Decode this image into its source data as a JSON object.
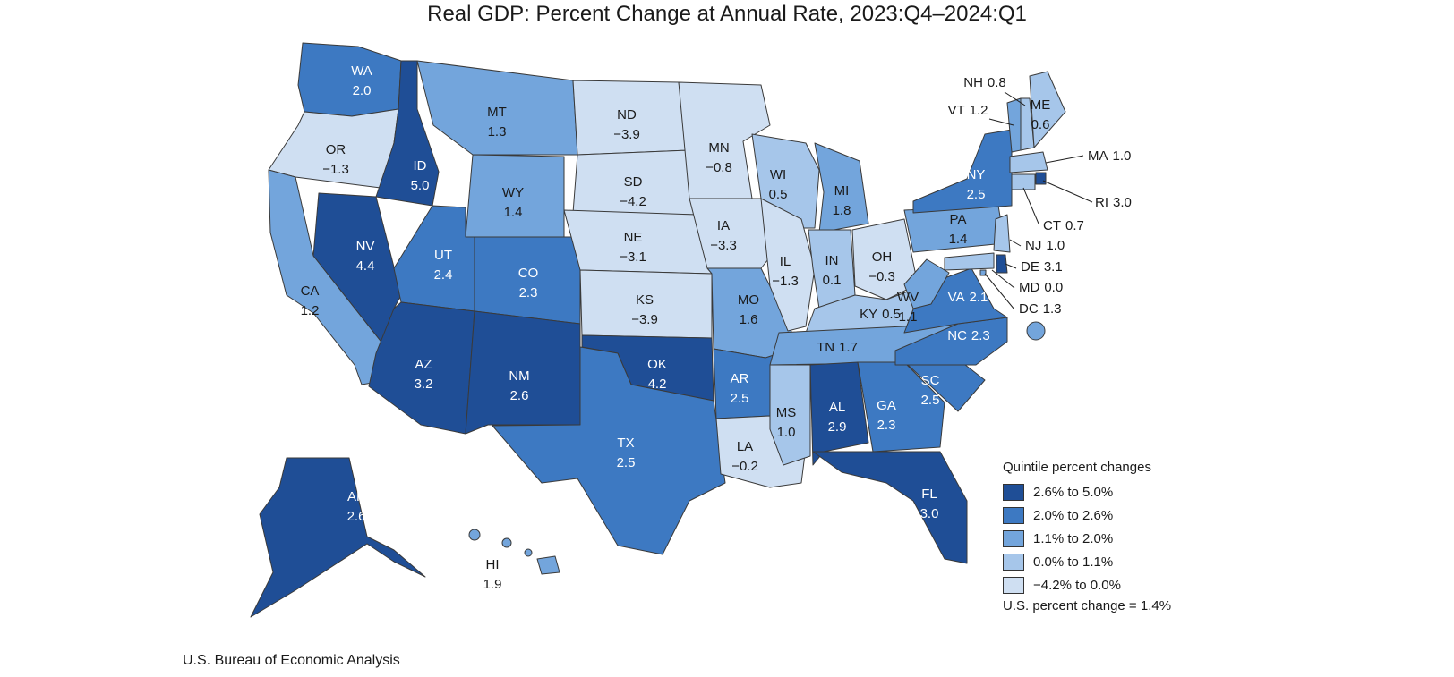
{
  "title": "Real GDP: Percent Change at Annual Rate, 2023:Q4–2024:Q1",
  "source": "U.S. Bureau of Economic Analysis",
  "legend": {
    "title": "Quintile percent changes",
    "items": [
      {
        "label": "2.6% to 5.0%",
        "color": "#1f4e96"
      },
      {
        "label": "2.0% to 2.6%",
        "color": "#3d79c2"
      },
      {
        "label": "1.1% to 2.0%",
        "color": "#73a5dc"
      },
      {
        "label": "0.0% to 1.1%",
        "color": "#a6c6ea"
      },
      {
        "label": "−4.2% to 0.0%",
        "color": "#cfdff2"
      }
    ],
    "us_change": "U.S. percent change = 1.4%"
  },
  "states": [
    {
      "abbr": "WA",
      "value": "2.0",
      "quintile": 1
    },
    {
      "abbr": "OR",
      "value": "−1.3",
      "quintile": 4
    },
    {
      "abbr": "CA",
      "value": "1.2",
      "quintile": 2
    },
    {
      "abbr": "ID",
      "value": "5.0",
      "quintile": 0
    },
    {
      "abbr": "NV",
      "value": "4.4",
      "quintile": 0
    },
    {
      "abbr": "MT",
      "value": "1.3",
      "quintile": 2
    },
    {
      "abbr": "WY",
      "value": "1.4",
      "quintile": 2
    },
    {
      "abbr": "UT",
      "value": "2.4",
      "quintile": 1
    },
    {
      "abbr": "CO",
      "value": "2.3",
      "quintile": 1
    },
    {
      "abbr": "AZ",
      "value": "3.2",
      "quintile": 0
    },
    {
      "abbr": "NM",
      "value": "2.6",
      "quintile": 0
    },
    {
      "abbr": "ND",
      "value": "−3.9",
      "quintile": 4
    },
    {
      "abbr": "SD",
      "value": "−4.2",
      "quintile": 4
    },
    {
      "abbr": "NE",
      "value": "−3.1",
      "quintile": 4
    },
    {
      "abbr": "KS",
      "value": "−3.9",
      "quintile": 4
    },
    {
      "abbr": "OK",
      "value": "4.2",
      "quintile": 0
    },
    {
      "abbr": "TX",
      "value": "2.5",
      "quintile": 1
    },
    {
      "abbr": "MN",
      "value": "−0.8",
      "quintile": 4
    },
    {
      "abbr": "IA",
      "value": "−3.3",
      "quintile": 4
    },
    {
      "abbr": "MO",
      "value": "1.6",
      "quintile": 2
    },
    {
      "abbr": "AR",
      "value": "2.5",
      "quintile": 1
    },
    {
      "abbr": "LA",
      "value": "−0.2",
      "quintile": 4
    },
    {
      "abbr": "WI",
      "value": "0.5",
      "quintile": 3
    },
    {
      "abbr": "IL",
      "value": "−1.3",
      "quintile": 4
    },
    {
      "abbr": "MI",
      "value": "1.8",
      "quintile": 2
    },
    {
      "abbr": "IN",
      "value": "0.1",
      "quintile": 3
    },
    {
      "abbr": "OH",
      "value": "−0.3",
      "quintile": 4
    },
    {
      "abbr": "KY",
      "value": "0.5",
      "quintile": 3
    },
    {
      "abbr": "TN",
      "value": "1.7",
      "quintile": 2
    },
    {
      "abbr": "MS",
      "value": "1.0",
      "quintile": 3
    },
    {
      "abbr": "AL",
      "value": "2.9",
      "quintile": 0
    },
    {
      "abbr": "GA",
      "value": "2.3",
      "quintile": 1
    },
    {
      "abbr": "FL",
      "value": "3.0",
      "quintile": 0
    },
    {
      "abbr": "SC",
      "value": "2.5",
      "quintile": 1
    },
    {
      "abbr": "NC",
      "value": "2.3",
      "quintile": 1
    },
    {
      "abbr": "VA",
      "value": "2.1",
      "quintile": 1
    },
    {
      "abbr": "WV",
      "value": "1.1",
      "quintile": 2
    },
    {
      "abbr": "PA",
      "value": "1.4",
      "quintile": 2
    },
    {
      "abbr": "NY",
      "value": "2.5",
      "quintile": 1
    },
    {
      "abbr": "ME",
      "value": "0.6",
      "quintile": 3
    },
    {
      "abbr": "NH",
      "value": "0.8",
      "quintile": 3
    },
    {
      "abbr": "VT",
      "value": "1.2",
      "quintile": 2
    },
    {
      "abbr": "MA",
      "value": "1.0",
      "quintile": 3
    },
    {
      "abbr": "RI",
      "value": "3.0",
      "quintile": 0
    },
    {
      "abbr": "CT",
      "value": "0.7",
      "quintile": 3
    },
    {
      "abbr": "NJ",
      "value": "1.0",
      "quintile": 3
    },
    {
      "abbr": "DE",
      "value": "3.1",
      "quintile": 0
    },
    {
      "abbr": "MD",
      "value": "0.0",
      "quintile": 3
    },
    {
      "abbr": "DC",
      "value": "1.3",
      "quintile": 2
    },
    {
      "abbr": "AK",
      "value": "2.6",
      "quintile": 0
    },
    {
      "abbr": "HI",
      "value": "1.9",
      "quintile": 2
    }
  ]
}
